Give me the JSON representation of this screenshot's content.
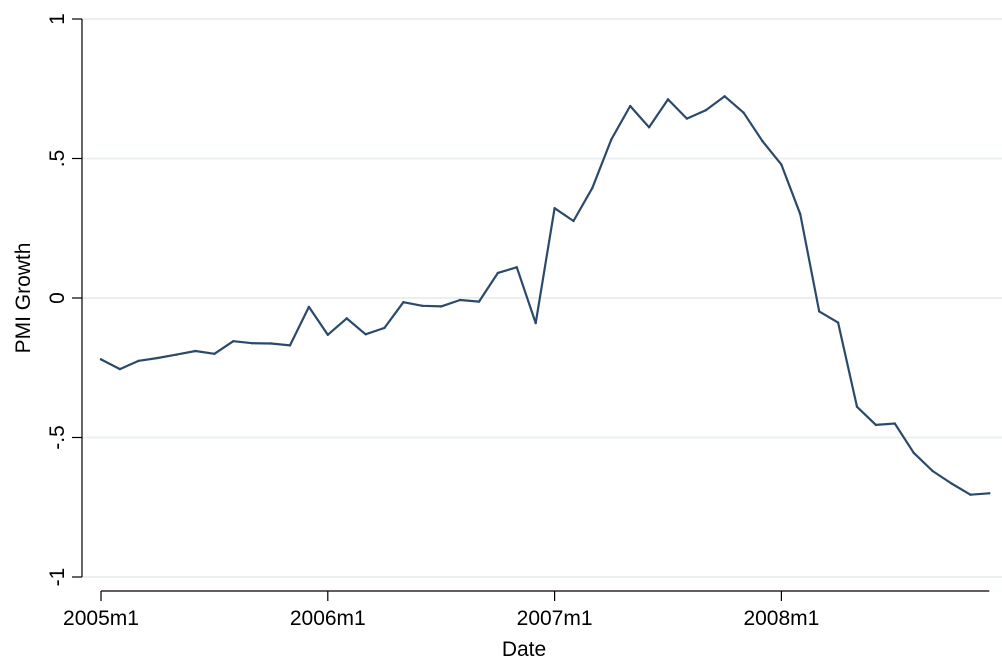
{
  "chart_data": {
    "type": "line",
    "title": "",
    "xlabel": "Date",
    "ylabel": "PMI Growth",
    "ylim": [
      -1,
      1
    ],
    "xlim": [
      "2005m1",
      "2008m12"
    ],
    "y_ticks": [
      {
        "value": -1,
        "label": "-1"
      },
      {
        "value": -0.5,
        "label": "-.5"
      },
      {
        "value": 0,
        "label": "0"
      },
      {
        "value": 0.5,
        "label": ".5"
      },
      {
        "value": 1,
        "label": "1"
      }
    ],
    "x_ticks": [
      {
        "value": "2005m1",
        "label": "2005m1"
      },
      {
        "value": "2006m1",
        "label": "2006m1"
      },
      {
        "value": "2007m1",
        "label": "2007m1"
      },
      {
        "value": "2008m1",
        "label": "2008m1"
      }
    ],
    "grid": {
      "horizontal": true,
      "vertical": false
    },
    "series": [
      {
        "color": "#2b4a6b",
        "x": [
          "2005m1",
          "2005m2",
          "2005m3",
          "2005m4",
          "2005m5",
          "2005m6",
          "2005m7",
          "2005m8",
          "2005m9",
          "2005m10",
          "2005m11",
          "2005m12",
          "2006m1",
          "2006m2",
          "2006m3",
          "2006m4",
          "2006m5",
          "2006m6",
          "2006m7",
          "2006m8",
          "2006m9",
          "2006m10",
          "2006m11",
          "2006m12",
          "2007m1",
          "2007m2",
          "2007m3",
          "2007m4",
          "2007m5",
          "2007m6",
          "2007m7",
          "2007m8",
          "2007m9",
          "2007m10",
          "2007m11",
          "2007m12",
          "2008m1",
          "2008m2",
          "2008m3",
          "2008m4",
          "2008m5",
          "2008m6",
          "2008m7",
          "2008m8",
          "2008m9",
          "2008m10",
          "2008m11",
          "2008m12"
        ],
        "y": [
          -0.22,
          -0.255,
          -0.225,
          -0.215,
          -0.203,
          -0.19,
          -0.2,
          -0.155,
          -0.162,
          -0.163,
          -0.17,
          -0.032,
          -0.132,
          -0.073,
          -0.13,
          -0.107,
          -0.015,
          -0.028,
          -0.03,
          -0.007,
          -0.013,
          0.09,
          0.11,
          -0.09,
          0.322,
          0.276,
          0.395,
          0.568,
          0.688,
          0.612,
          0.712,
          0.643,
          0.673,
          0.723,
          0.664,
          0.562,
          0.478,
          0.3,
          -0.048,
          -0.088,
          -0.39,
          -0.455,
          -0.45,
          -0.555,
          -0.62,
          -0.665,
          -0.705,
          -0.7
        ]
      }
    ]
  }
}
